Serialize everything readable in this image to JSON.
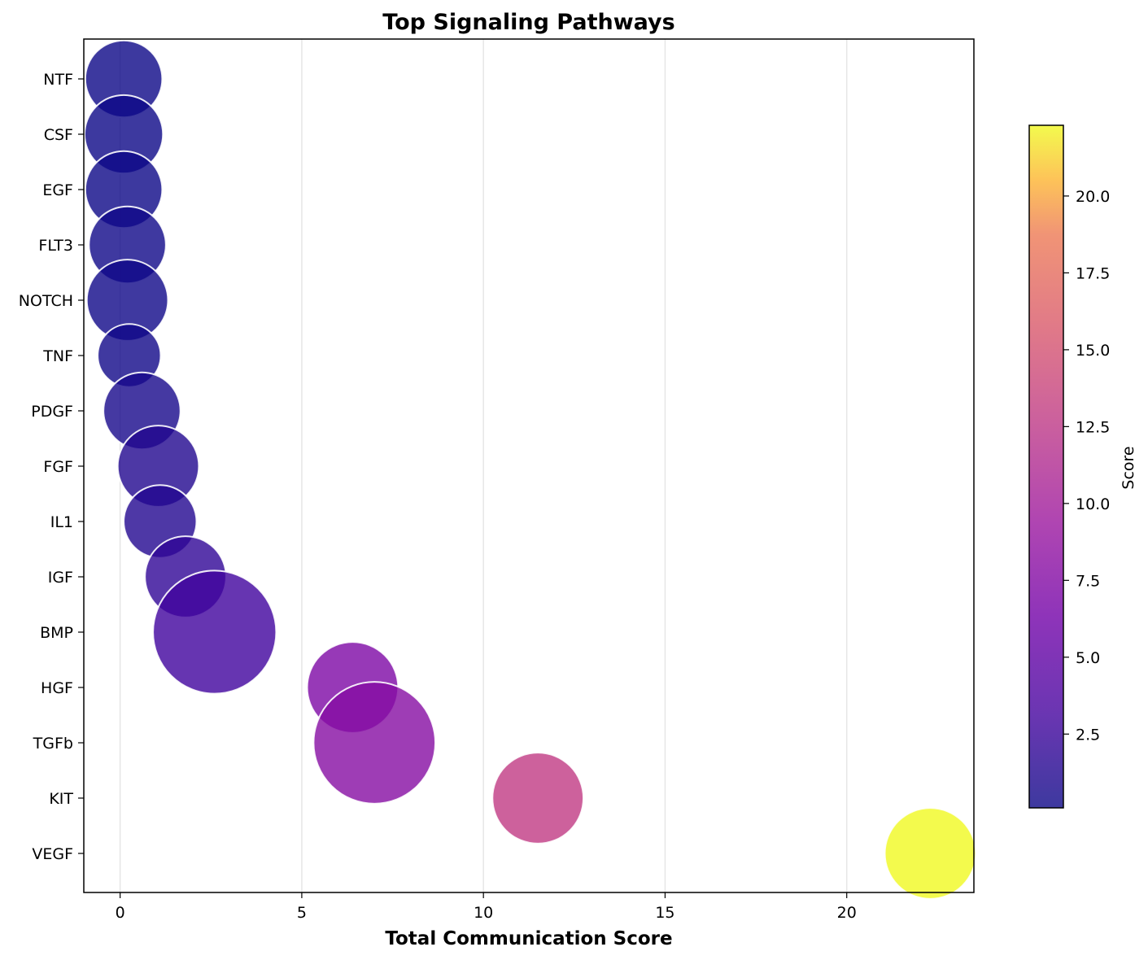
{
  "chart_data": {
    "type": "scatter",
    "title": "Top Signaling Pathways",
    "xlabel": "Total Communication Score",
    "ylabel": "",
    "xlim": [
      -1,
      23.5
    ],
    "xticks": [
      0,
      5,
      10,
      15,
      20
    ],
    "grid": "vertical",
    "colormap": "plasma",
    "colorbar": {
      "label": "Score",
      "range": [
        0.1,
        22.3
      ],
      "ticks": [
        "2.5",
        "5.0",
        "7.5",
        "10.0",
        "12.5",
        "15.0",
        "17.5",
        "20.0"
      ]
    },
    "categories": [
      "NTF",
      "CSF",
      "EGF",
      "FLT3",
      "NOTCH",
      "TNF",
      "PDGF",
      "FGF",
      "IL1",
      "IGF",
      "BMP",
      "HGF",
      "TGFb",
      "KIT",
      "VEGF"
    ],
    "points": [
      {
        "label": "NTF",
        "x": 0.1,
        "size": 0.55
      },
      {
        "label": "CSF",
        "x": 0.1,
        "size": 0.56
      },
      {
        "label": "EGF",
        "x": 0.1,
        "size": 0.55
      },
      {
        "label": "FLT3",
        "x": 0.2,
        "size": 0.55
      },
      {
        "label": "NOTCH",
        "x": 0.2,
        "size": 0.58
      },
      {
        "label": "TNF",
        "x": 0.25,
        "size": 0.45
      },
      {
        "label": "PDGF",
        "x": 0.6,
        "size": 0.55
      },
      {
        "label": "FGF",
        "x": 1.05,
        "size": 0.58
      },
      {
        "label": "IL1",
        "x": 1.1,
        "size": 0.52
      },
      {
        "label": "IGF",
        "x": 1.8,
        "size": 0.58
      },
      {
        "label": "BMP",
        "x": 2.6,
        "size": 0.88
      },
      {
        "label": "HGF",
        "x": 6.4,
        "size": 0.65
      },
      {
        "label": "TGFb",
        "x": 7.0,
        "size": 0.87
      },
      {
        "label": "KIT",
        "x": 11.5,
        "size": 0.65
      },
      {
        "label": "VEGF",
        "x": 22.3,
        "size": 0.65
      }
    ]
  }
}
